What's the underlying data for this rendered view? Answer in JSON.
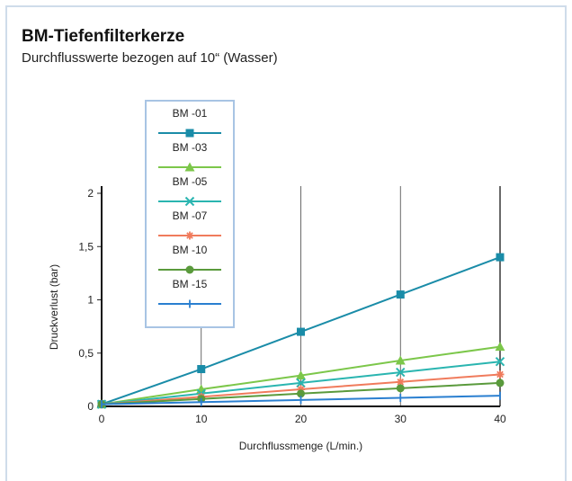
{
  "title": "BM-Tiefenfilterkerze",
  "subtitle": "Durchflusswerte bezogen auf 10“ (Wasser)",
  "chart_data": {
    "type": "line",
    "xlabel": "Durchflussmenge (L/min.)",
    "ylabel": "Druckverlust (bar)",
    "xlim": [
      0,
      40
    ],
    "ylim": [
      0,
      2
    ],
    "x_ticks": [
      "0",
      "10",
      "20",
      "30",
      "40"
    ],
    "y_ticks": [
      "0",
      "0,5",
      "1",
      "1,5",
      "2"
    ],
    "grid": "vertical",
    "legend_position": "top-left",
    "x": [
      0,
      10,
      20,
      30,
      40
    ],
    "series": [
      {
        "name": "BM -01",
        "color": "#1a8ca8",
        "marker": "square",
        "values": [
          0.02,
          0.35,
          0.7,
          1.05,
          1.4
        ]
      },
      {
        "name": "BM -03",
        "color": "#7cc74a",
        "marker": "triangle",
        "values": [
          0.02,
          0.16,
          0.29,
          0.43,
          0.56
        ]
      },
      {
        "name": "BM -05",
        "color": "#2ab5b0",
        "marker": "x",
        "values": [
          0.02,
          0.12,
          0.22,
          0.32,
          0.42
        ]
      },
      {
        "name": "BM -07",
        "color": "#f07b5c",
        "marker": "asterisk",
        "values": [
          0.02,
          0.09,
          0.16,
          0.23,
          0.3
        ]
      },
      {
        "name": "BM -10",
        "color": "#5a9a3c",
        "marker": "circle",
        "values": [
          0.02,
          0.07,
          0.12,
          0.17,
          0.22
        ]
      },
      {
        "name": "BM -15",
        "color": "#2a7fd0",
        "marker": "plus",
        "values": [
          0.02,
          0.04,
          0.06,
          0.08,
          0.1
        ]
      }
    ]
  }
}
